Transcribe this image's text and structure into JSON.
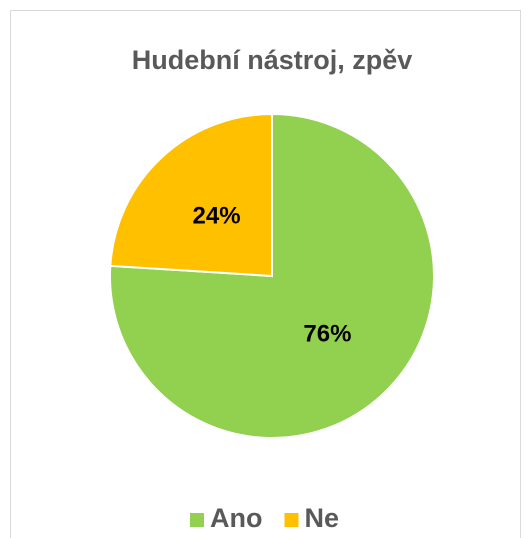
{
  "chart_data": {
    "type": "pie",
    "title": "Hudební nástroj, zpěv",
    "categories": [
      "Ano",
      "Ne"
    ],
    "values": [
      76,
      24
    ],
    "value_labels": [
      "76%",
      "24%"
    ],
    "colors": [
      "#92d050",
      "#ffc000"
    ],
    "legend": "bottom"
  }
}
